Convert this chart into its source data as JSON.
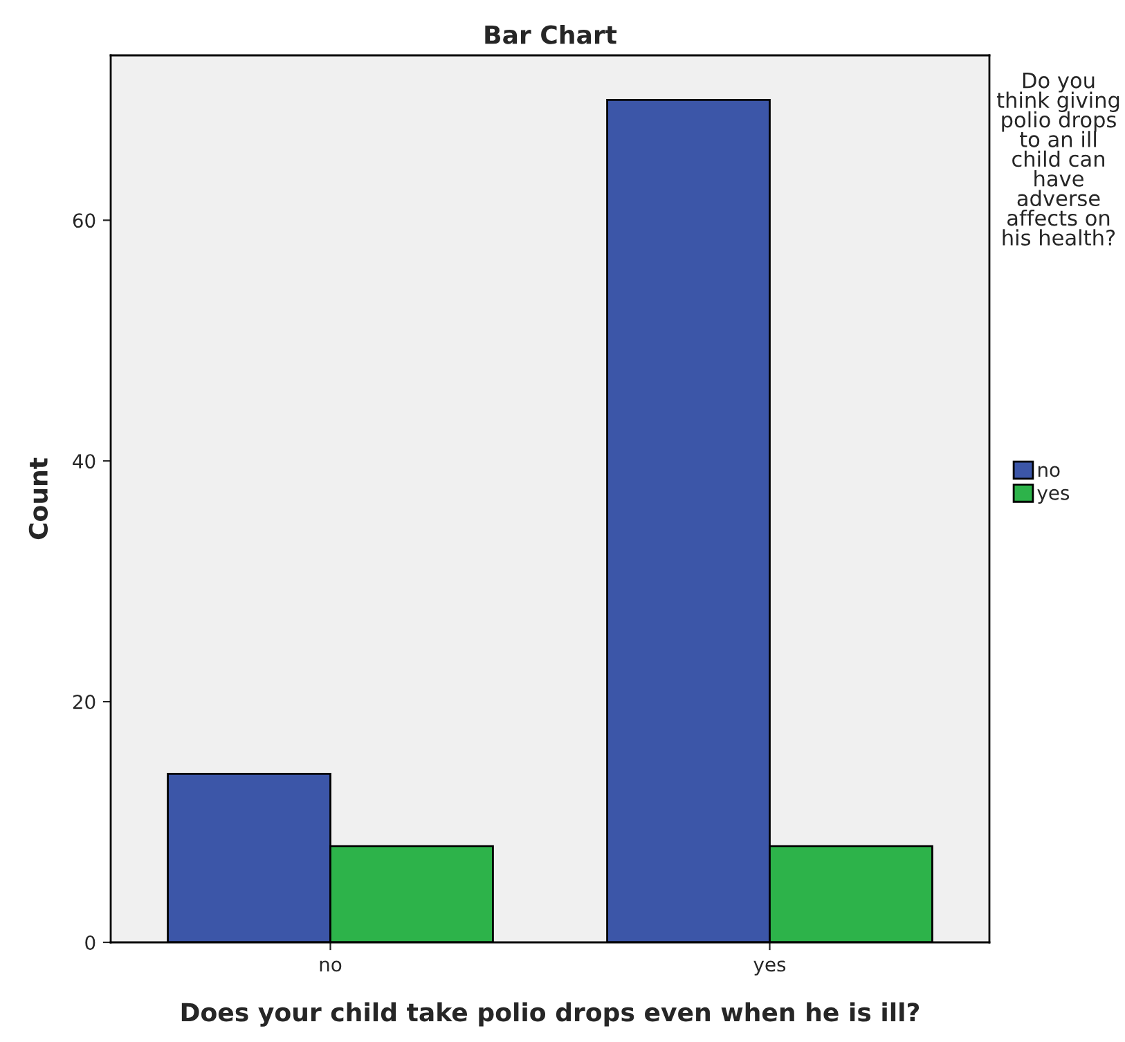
{
  "chart_data": {
    "type": "bar",
    "title": "Bar Chart",
    "xlabel": "Does your child take polio drops even when he is ill?",
    "ylabel": "Count",
    "legend_title": "Do you think giving polio drops to an ill child can have adverse affects on his health?",
    "categories": [
      "no",
      "yes"
    ],
    "series": [
      {
        "name": "no",
        "color": "#3c56a8",
        "values": [
          14,
          70
        ]
      },
      {
        "name": "yes",
        "color": "#2db34a",
        "values": [
          8,
          8
        ]
      }
    ],
    "ylim": [
      0,
      73.7
    ],
    "yticks": [
      0,
      20,
      40,
      60
    ],
    "grid": false,
    "legend": "right"
  }
}
